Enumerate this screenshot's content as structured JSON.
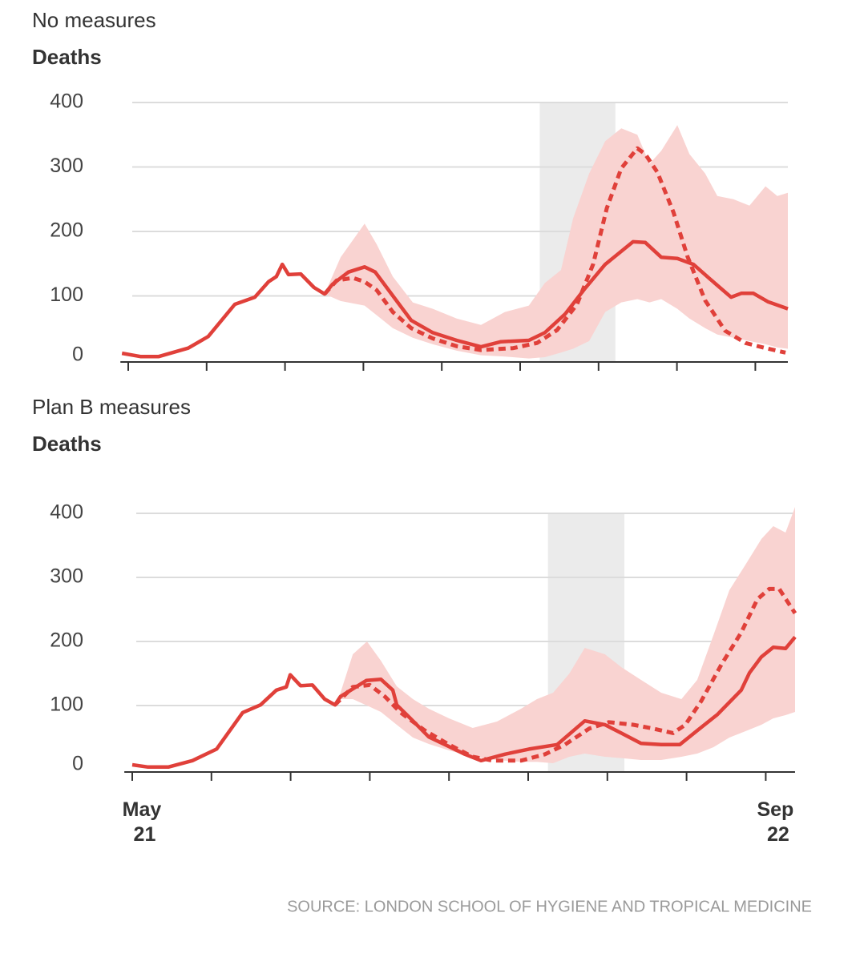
{
  "chart_data": [
    {
      "type": "line",
      "title": "No measures",
      "y_label": "Deaths",
      "ylim": [
        0,
        400
      ],
      "yticks": [
        0,
        100,
        200,
        300,
        400
      ],
      "grid": true,
      "xlim": [
        -0.2,
        16.83
      ],
      "xticks": [
        {
          "value": 0,
          "label": null
        },
        {
          "value": 2,
          "label": null
        },
        {
          "value": 4,
          "label": null
        },
        {
          "value": 6,
          "label": null
        },
        {
          "value": 8,
          "label": null
        },
        {
          "value": 10,
          "label": null
        },
        {
          "value": 12,
          "label": null
        },
        {
          "value": 14,
          "label": null
        },
        {
          "value": 16,
          "label": null
        }
      ],
      "shaded_x": [
        10.5,
        12.43
      ],
      "shade_color": "#ebebeb",
      "series": [
        {
          "kind": "band",
          "color": "#f9d3d1",
          "x": [
            5.01,
            5.42,
            6.03,
            6.34,
            6.75,
            7.26,
            7.77,
            8.38,
            9.0,
            9.61,
            10.22,
            10.63,
            11.04,
            11.35,
            11.76,
            12.17,
            12.58,
            12.99,
            13.3,
            13.6,
            14.01,
            14.32,
            14.72,
            15.03,
            15.44,
            15.85,
            16.26,
            16.56,
            16.83
          ],
          "upper": [
            103,
            160,
            212,
            180,
            130,
            90,
            80,
            65,
            55,
            75,
            85,
            120,
            140,
            220,
            290,
            340,
            360,
            350,
            305,
            325,
            365,
            320,
            290,
            255,
            250,
            240,
            270,
            255,
            260
          ],
          "lower": [
            103,
            92,
            85,
            70,
            50,
            35,
            25,
            15,
            8,
            6,
            3,
            5,
            12,
            18,
            30,
            75,
            90,
            95,
            90,
            95,
            80,
            65,
            50,
            40,
            35,
            30,
            25,
            20,
            18
          ]
        },
        {
          "kind": "dashed",
          "color": "#e0403a",
          "x": [
            5.01,
            5.32,
            5.73,
            6.03,
            6.34,
            6.75,
            7.22,
            7.77,
            8.38,
            9.0,
            9.82,
            10.43,
            10.94,
            11.45,
            11.86,
            12.21,
            12.58,
            12.99,
            13.19,
            13.5,
            13.91,
            14.27,
            14.72,
            15.23,
            15.75,
            16.26,
            16.77
          ],
          "values": [
            103,
            124,
            128,
            122,
            109,
            75,
            50,
            34,
            22,
            16,
            19,
            27,
            47,
            87,
            149,
            236,
            298,
            329,
            320,
            292,
            230,
            161,
            93,
            46,
            27,
            19,
            12
          ]
        },
        {
          "kind": "solid",
          "color": "#e0403a",
          "x": [
            -0.16,
            0.31,
            0.78,
            1.53,
            2.04,
            2.72,
            3.23,
            3.58,
            3.78,
            3.93,
            4.09,
            4.4,
            4.74,
            5.01,
            5.21,
            5.62,
            6.03,
            6.3,
            6.79,
            7.22,
            7.77,
            8.38,
            9.0,
            9.51,
            10.22,
            10.63,
            11.15,
            11.66,
            12.17,
            12.88,
            13.19,
            13.6,
            14.01,
            14.42,
            14.83,
            15.38,
            15.64,
            15.95,
            16.32,
            16.83
          ],
          "values": [
            11,
            6,
            6,
            19,
            37,
            87,
            98,
            122,
            130,
            149,
            133,
            134,
            113,
            103,
            118,
            137,
            145,
            137,
            97,
            62,
            43,
            31,
            21,
            29,
            31,
            43,
            72,
            112,
            149,
            184,
            183,
            160,
            158,
            149,
            127,
            98,
            104,
            104,
            91,
            80
          ]
        }
      ]
    },
    {
      "type": "line",
      "title": "Plan B measures",
      "y_label": "Deaths",
      "ylim": [
        0,
        400
      ],
      "yticks": [
        0,
        100,
        200,
        300,
        400
      ],
      "grid": true,
      "xlim": [
        -0.2,
        16.74
      ],
      "xticks": [
        {
          "value": 0,
          "label": "May 21"
        },
        {
          "value": 2,
          "label": null
        },
        {
          "value": 4,
          "label": null
        },
        {
          "value": 6,
          "label": null
        },
        {
          "value": 8,
          "label": null
        },
        {
          "value": 10,
          "label": null
        },
        {
          "value": 12,
          "label": null
        },
        {
          "value": 14,
          "label": null
        },
        {
          "value": 16,
          "label": "Sep 22"
        }
      ],
      "shaded_x": [
        10.5,
        12.43
      ],
      "shade_color": "#ebebeb",
      "series": [
        {
          "kind": "band",
          "color": "#f9d3d1",
          "x": [
            5.12,
            5.26,
            5.57,
            5.93,
            6.28,
            6.68,
            7.09,
            7.49,
            8.0,
            8.6,
            9.21,
            9.82,
            10.22,
            10.63,
            11.04,
            11.43,
            11.94,
            12.35,
            12.85,
            13.36,
            13.87,
            14.27,
            14.68,
            15.08,
            15.49,
            15.89,
            16.19,
            16.5,
            16.74
          ],
          "upper": [
            101,
            120,
            180,
            200,
            170,
            130,
            110,
            95,
            80,
            65,
            75,
            95,
            110,
            120,
            150,
            190,
            180,
            160,
            140,
            120,
            110,
            140,
            210,
            280,
            320,
            360,
            380,
            370,
            410
          ],
          "lower": [
            101,
            110,
            110,
            100,
            90,
            70,
            50,
            40,
            30,
            20,
            15,
            12,
            12,
            10,
            20,
            25,
            20,
            18,
            15,
            15,
            20,
            25,
            35,
            50,
            60,
            70,
            80,
            85,
            90
          ]
        },
        {
          "kind": "dashed",
          "color": "#e0403a",
          "x": [
            5.12,
            5.57,
            6.0,
            6.38,
            6.78,
            7.39,
            8.0,
            8.6,
            9.11,
            9.82,
            10.43,
            10.93,
            11.54,
            12.04,
            12.65,
            13.16,
            13.66,
            13.97,
            14.37,
            14.88,
            15.38,
            15.79,
            16.09,
            16.34,
            16.74
          ],
          "values": [
            101,
            129,
            132,
            114,
            89,
            61,
            39,
            20,
            14,
            14,
            24,
            39,
            64,
            74,
            70,
            64,
            57,
            70,
            107,
            164,
            214,
            266,
            282,
            282,
            244
          ]
        },
        {
          "kind": "solid",
          "color": "#e0403a",
          "x": [
            0,
            0.4,
            0.91,
            1.52,
            2.13,
            2.79,
            3.24,
            3.64,
            3.89,
            3.99,
            4.25,
            4.55,
            4.86,
            5.12,
            5.26,
            5.57,
            5.91,
            6.28,
            6.58,
            6.68,
            7.09,
            7.49,
            8.0,
            8.4,
            8.81,
            9.41,
            10.02,
            10.73,
            11.43,
            11.94,
            12.35,
            12.85,
            13.36,
            13.83,
            14.27,
            14.78,
            15.38,
            15.59,
            15.89,
            16.19,
            16.5,
            16.74
          ],
          "values": [
            7.5,
            4,
            4,
            14,
            32,
            89,
            101,
            124,
            129,
            148,
            131,
            132,
            110,
            101,
            114,
            126,
            139,
            141,
            124,
            101,
            76,
            51,
            36,
            24,
            14,
            24,
            32,
            39,
            76,
            70,
            57,
            41,
            39,
            39,
            61,
            86,
            124,
            151,
            176,
            191,
            189,
            207
          ]
        }
      ]
    }
  ],
  "source": "SOURCE: LONDON SCHOOL OF HYGIENE AND TROPICAL MEDICINE"
}
